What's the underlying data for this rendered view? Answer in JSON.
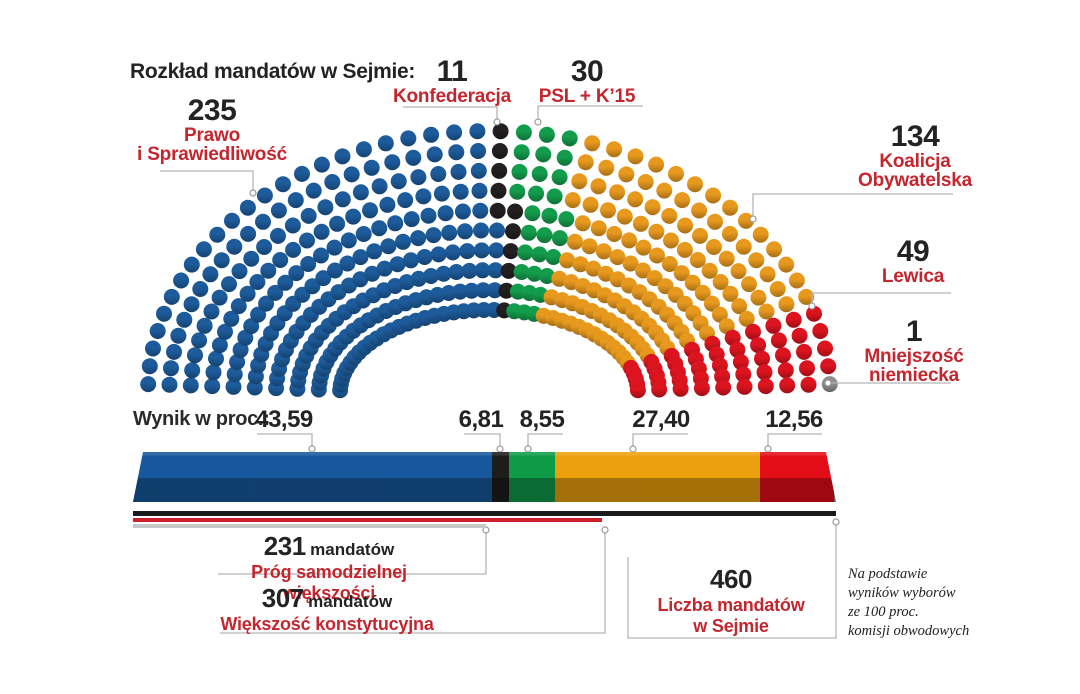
{
  "title": "Rozkład mandatów w Sejmie:",
  "chart_data": {
    "parliament": {
      "type": "parliament",
      "title": "Rozkład mandatów w Sejmie:",
      "total_seats": 460,
      "rows": 10,
      "parties": [
        {
          "name": "Prawo i Sprawiedliwość",
          "label_lines": [
            "Prawo",
            "i Sprawiedliwość"
          ],
          "seats": 235,
          "color": "#1d5b9b"
        },
        {
          "name": "Konfederacja",
          "label_lines": [
            "Konfederacja"
          ],
          "seats": 11,
          "color": "#242021"
        },
        {
          "name": "PSL + K’15",
          "label_lines": [
            "PSL + K’15"
          ],
          "seats": 30,
          "color": "#139c4b"
        },
        {
          "name": "Koalicja Obywatelska",
          "label_lines": [
            "Koalicja",
            "Obywatelska"
          ],
          "seats": 134,
          "color": "#e7991d"
        },
        {
          "name": "Lewica",
          "label_lines": [
            "Lewica"
          ],
          "seats": 49,
          "color": "#dc141f"
        },
        {
          "name": "Mniejszość niemiecka",
          "label_lines": [
            "Mniejszość",
            "niemiecka"
          ],
          "seats": 1,
          "color": "#8f8f8f"
        }
      ]
    },
    "percent_bar": {
      "type": "bar",
      "title": "Wynik w proc.:",
      "categories": [
        "Prawo i Sprawiedliwość",
        "Konfederacja",
        "PSL + K’15",
        "Koalicja Obywatelska",
        "Lewica"
      ],
      "values": [
        43.59,
        6.81,
        8.55,
        27.4,
        12.56
      ],
      "values_text": [
        "43,59",
        "6,81",
        "8,55",
        "27,40",
        "12,56"
      ],
      "colors": [
        "#17589c",
        "#1d1d1b",
        "#0e9b48",
        "#eda00d",
        "#e30d18"
      ]
    },
    "annotations": {
      "majority_threshold": {
        "value": "231",
        "unit": "mandatów",
        "label": "Próg samodzielnej większości",
        "seats": 231
      },
      "constitutional_majority": {
        "value": "307",
        "unit": "mandatów",
        "label": "Większość konstytucyjna",
        "seats": 307
      },
      "total_seats": {
        "value": "460",
        "label_lines": [
          "Liczba mandatów",
          "w Sejmie"
        ],
        "seats": 460
      },
      "source_note_lines": [
        "Na podstawie",
        "wyników wyborów",
        "ze 100 proc.",
        "komisji obwodowych"
      ]
    }
  }
}
